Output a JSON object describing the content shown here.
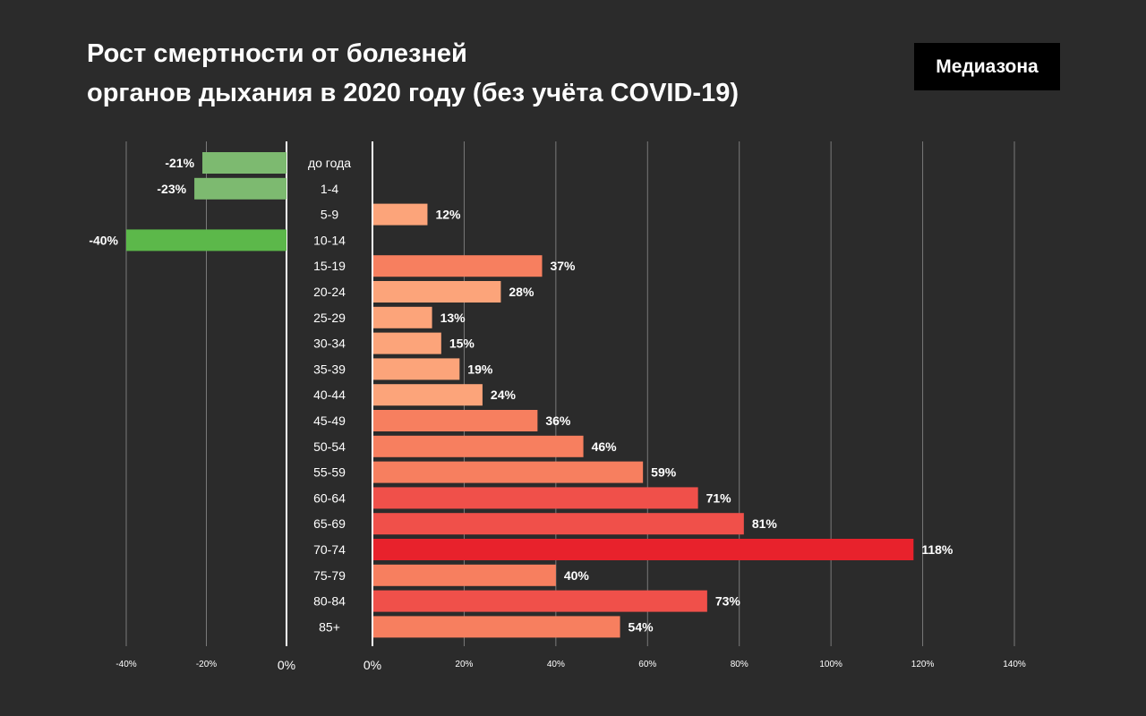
{
  "header": {
    "title_line1": "Рост смертности от болезней",
    "title_line2": "органов дыхания в 2020 году (без учёта COVID-19)",
    "brand": "Медиазона"
  },
  "chart_data": {
    "type": "bar",
    "orientation": "horizontal",
    "categories": [
      "до года",
      "1-4",
      "5-9",
      "10-14",
      "15-19",
      "20-24",
      "25-29",
      "30-34",
      "35-39",
      "40-44",
      "45-49",
      "50-54",
      "55-59",
      "60-64",
      "65-69",
      "70-74",
      "75-79",
      "80-84",
      "85+"
    ],
    "values": [
      -21,
      -23,
      12,
      -40,
      37,
      28,
      13,
      15,
      19,
      24,
      36,
      46,
      59,
      71,
      81,
      118,
      40,
      73,
      54
    ],
    "value_labels": [
      "-21%",
      "-23%",
      "12%",
      "-40%",
      "37%",
      "28%",
      "13%",
      "15%",
      "19%",
      "24%",
      "36%",
      "46%",
      "59%",
      "71%",
      "81%",
      "118%",
      "40%",
      "73%",
      "54%"
    ],
    "negative_axis": {
      "range": [
        -40,
        0
      ],
      "ticks": [
        -40,
        -20,
        0
      ],
      "tick_labels": [
        "-40%",
        "-20%",
        "0%"
      ]
    },
    "positive_axis": {
      "range": [
        0,
        140
      ],
      "ticks": [
        0,
        20,
        40,
        60,
        80,
        100,
        120,
        140
      ],
      "tick_labels": [
        "0%",
        "20%",
        "40%",
        "60%",
        "80%",
        "100%",
        "120%",
        "140%"
      ]
    },
    "grid": true,
    "colors": {
      "negative_light": "#7dba70",
      "negative_strong": "#5cb84a",
      "positive_light": "#fca47a",
      "positive_mid": "#f77f5f",
      "positive_strong": "#f0504a",
      "positive_max": "#e8222c",
      "grid": "#7a7a7a",
      "zero_line": "#ffffff"
    }
  }
}
